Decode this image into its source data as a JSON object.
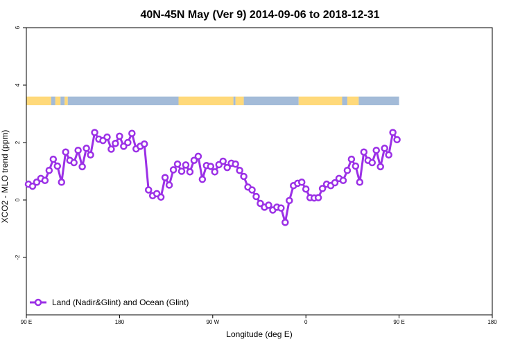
{
  "chart_data": {
    "type": "line",
    "title": "40N-45N May (Ver 9)   2014-09-06 to 2018-12-31",
    "xlabel": "Longitude (deg E)",
    "ylabel": "XCO2 - MLO trend (ppm)",
    "xlim": [
      90,
      450
    ],
    "ylim": [
      -4,
      6
    ],
    "x_ticks": [
      90,
      180,
      270,
      360,
      450,
      540
    ],
    "x_tick_labels": [
      "90 E",
      "180",
      "90 W",
      "0",
      "90 E",
      "180"
    ],
    "y_ticks": [
      -2,
      0,
      2,
      4,
      6
    ],
    "y_tick_labels": [
      "-2",
      "0",
      "2",
      "4",
      "6"
    ],
    "grid": false,
    "legend_position": "bottom-left",
    "colors": {
      "series": "#9b30e6",
      "land": "#ffd97a",
      "ocean": "#a3bbd8"
    },
    "series": [
      {
        "name": "Land (Nadir&Glint) and Ocean (Glint)",
        "x": [
          92,
          96,
          100,
          104,
          108,
          112,
          116,
          120,
          124,
          128,
          132,
          136,
          140,
          144,
          148,
          152,
          156,
          160,
          164,
          168,
          172,
          176,
          180,
          184,
          188,
          192,
          196,
          200,
          204,
          208,
          212,
          216,
          220,
          224,
          228,
          232,
          236,
          240,
          244,
          248,
          252,
          256,
          260,
          264,
          268,
          272,
          276,
          280,
          284,
          288,
          292,
          296,
          300,
          304,
          308,
          312,
          316,
          320,
          324,
          328,
          332,
          336,
          340,
          344,
          348,
          352,
          356,
          360,
          364,
          368,
          372,
          376,
          380,
          384,
          388,
          392,
          396,
          400,
          404,
          408,
          412,
          416,
          420,
          424,
          428,
          432,
          436,
          440,
          444,
          448
        ],
        "y": [
          0.55,
          0.48,
          0.62,
          0.75,
          0.68,
          1.03,
          1.42,
          1.18,
          0.62,
          1.67,
          1.38,
          1.3,
          1.73,
          1.16,
          1.8,
          1.57,
          2.35,
          2.12,
          2.07,
          2.19,
          1.77,
          1.97,
          2.22,
          1.87,
          2.0,
          2.32,
          1.78,
          1.87,
          1.95,
          0.35,
          0.15,
          0.22,
          0.1,
          0.78,
          0.52,
          1.05,
          1.25,
          1.0,
          1.22,
          0.98,
          1.38,
          1.52,
          0.72,
          1.2,
          1.17,
          0.98,
          1.23,
          1.35,
          1.13,
          1.28,
          1.25,
          1.03,
          0.82,
          0.45,
          0.35,
          0.12,
          -0.12,
          -0.25,
          -0.18,
          -0.35,
          -0.25,
          -0.28,
          -0.78,
          -0.02,
          0.5,
          0.58,
          0.62,
          0.38,
          0.08,
          0.07,
          0.08,
          0.4,
          0.55,
          0.5,
          0.6,
          0.75,
          0.68,
          1.03,
          1.42,
          1.18,
          0.62,
          1.67,
          1.38,
          1.3,
          1.73,
          1.16,
          1.8,
          1.57,
          2.35,
          2.1
        ]
      }
    ],
    "surface_strip": {
      "y_range": [
        3.3,
        3.6
      ],
      "bands": [
        {
          "from": 90,
          "to": 114,
          "type": "land"
        },
        {
          "from": 114,
          "to": 118,
          "type": "ocean"
        },
        {
          "from": 118,
          "to": 123,
          "type": "land"
        },
        {
          "from": 123,
          "to": 127,
          "type": "ocean"
        },
        {
          "from": 127,
          "to": 130,
          "type": "land"
        },
        {
          "from": 130,
          "to": 237,
          "type": "ocean"
        },
        {
          "from": 237,
          "to": 290,
          "type": "land"
        },
        {
          "from": 290,
          "to": 292,
          "type": "ocean"
        },
        {
          "from": 292,
          "to": 300,
          "type": "land"
        },
        {
          "from": 300,
          "to": 353,
          "type": "ocean"
        },
        {
          "from": 353,
          "to": 395,
          "type": "land"
        },
        {
          "from": 395,
          "to": 400,
          "type": "ocean"
        },
        {
          "from": 400,
          "to": 411,
          "type": "land"
        },
        {
          "from": 411,
          "to": 450,
          "type": "ocean"
        }
      ]
    }
  }
}
